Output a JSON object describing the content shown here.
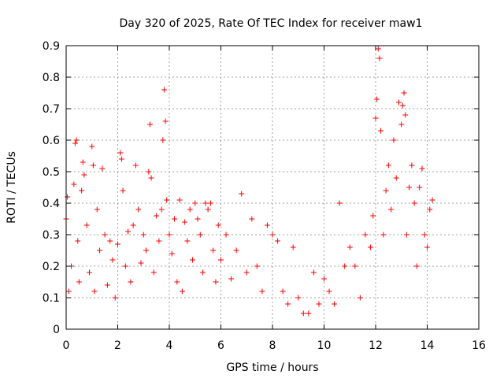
{
  "chart_data": {
    "type": "scatter",
    "title": "Day 320 of 2025, Rate Of TEC Index for receiver maw1",
    "xlabel": "GPS time / hours",
    "ylabel": "ROTI / TECUs",
    "xlim": [
      0,
      16
    ],
    "ylim": [
      0,
      0.9
    ],
    "x_ticks": [
      "0",
      "2",
      "4",
      "6",
      "8",
      "10",
      "12",
      "14",
      "16"
    ],
    "y_ticks": [
      "0",
      "0.1",
      "0.2",
      "0.3",
      "0.4",
      "0.5",
      "0.6",
      "0.7",
      "0.8",
      "0.9"
    ],
    "grid": true,
    "marker": "+",
    "color": "#ff0000",
    "series": [
      {
        "name": "ROTI",
        "x": [
          0.0,
          0.05,
          0.1,
          0.2,
          0.3,
          0.35,
          0.4,
          0.45,
          0.5,
          0.6,
          0.65,
          0.7,
          0.8,
          0.9,
          1.0,
          1.05,
          1.1,
          1.2,
          1.3,
          1.4,
          1.5,
          1.6,
          1.7,
          1.8,
          1.9,
          2.0,
          2.1,
          2.15,
          2.2,
          2.3,
          2.4,
          2.5,
          2.6,
          2.7,
          2.8,
          2.9,
          3.0,
          3.1,
          3.2,
          3.25,
          3.3,
          3.4,
          3.5,
          3.6,
          3.7,
          3.75,
          3.8,
          3.85,
          3.9,
          4.0,
          4.1,
          4.2,
          4.3,
          4.4,
          4.5,
          4.6,
          4.7,
          4.8,
          4.9,
          5.0,
          5.1,
          5.2,
          5.3,
          5.4,
          5.5,
          5.6,
          5.7,
          5.8,
          5.9,
          6.0,
          6.2,
          6.4,
          6.6,
          6.8,
          7.0,
          7.2,
          7.4,
          7.6,
          7.8,
          8.0,
          8.2,
          8.4,
          8.6,
          8.8,
          9.0,
          9.2,
          9.4,
          9.6,
          9.8,
          10.0,
          10.2,
          10.4,
          10.6,
          10.8,
          11.0,
          11.2,
          11.4,
          11.6,
          11.8,
          11.9,
          12.0,
          12.05,
          12.1,
          12.15,
          12.2,
          12.3,
          12.4,
          12.5,
          12.6,
          12.7,
          12.8,
          12.9,
          13.0,
          13.05,
          13.1,
          13.15,
          13.2,
          13.3,
          13.4,
          13.5,
          13.6,
          13.7,
          13.8,
          13.9,
          14.0,
          14.1,
          14.2
        ],
        "y": [
          0.35,
          0.42,
          0.12,
          0.2,
          0.46,
          0.59,
          0.6,
          0.28,
          0.15,
          0.44,
          0.53,
          0.49,
          0.33,
          0.18,
          0.58,
          0.52,
          0.12,
          0.38,
          0.25,
          0.51,
          0.3,
          0.14,
          0.28,
          0.22,
          0.1,
          0.27,
          0.56,
          0.54,
          0.44,
          0.2,
          0.31,
          0.15,
          0.33,
          0.52,
          0.38,
          0.21,
          0.3,
          0.25,
          0.5,
          0.65,
          0.48,
          0.18,
          0.36,
          0.28,
          0.38,
          0.6,
          0.76,
          0.66,
          0.41,
          0.3,
          0.24,
          0.35,
          0.15,
          0.41,
          0.12,
          0.34,
          0.28,
          0.38,
          0.22,
          0.4,
          0.35,
          0.3,
          0.18,
          0.4,
          0.38,
          0.4,
          0.25,
          0.15,
          0.33,
          0.22,
          0.3,
          0.16,
          0.25,
          0.43,
          0.18,
          0.35,
          0.2,
          0.12,
          0.33,
          0.3,
          0.28,
          0.12,
          0.08,
          0.26,
          0.1,
          0.05,
          0.05,
          0.18,
          0.08,
          0.16,
          0.12,
          0.08,
          0.4,
          0.2,
          0.26,
          0.2,
          0.1,
          0.3,
          0.26,
          0.36,
          0.67,
          0.73,
          0.89,
          0.86,
          0.63,
          0.3,
          0.44,
          0.52,
          0.38,
          0.6,
          0.48,
          0.72,
          0.65,
          0.71,
          0.75,
          0.68,
          0.3,
          0.45,
          0.52,
          0.4,
          0.2,
          0.45,
          0.51,
          0.3,
          0.26,
          0.38,
          0.41
        ]
      }
    ]
  }
}
